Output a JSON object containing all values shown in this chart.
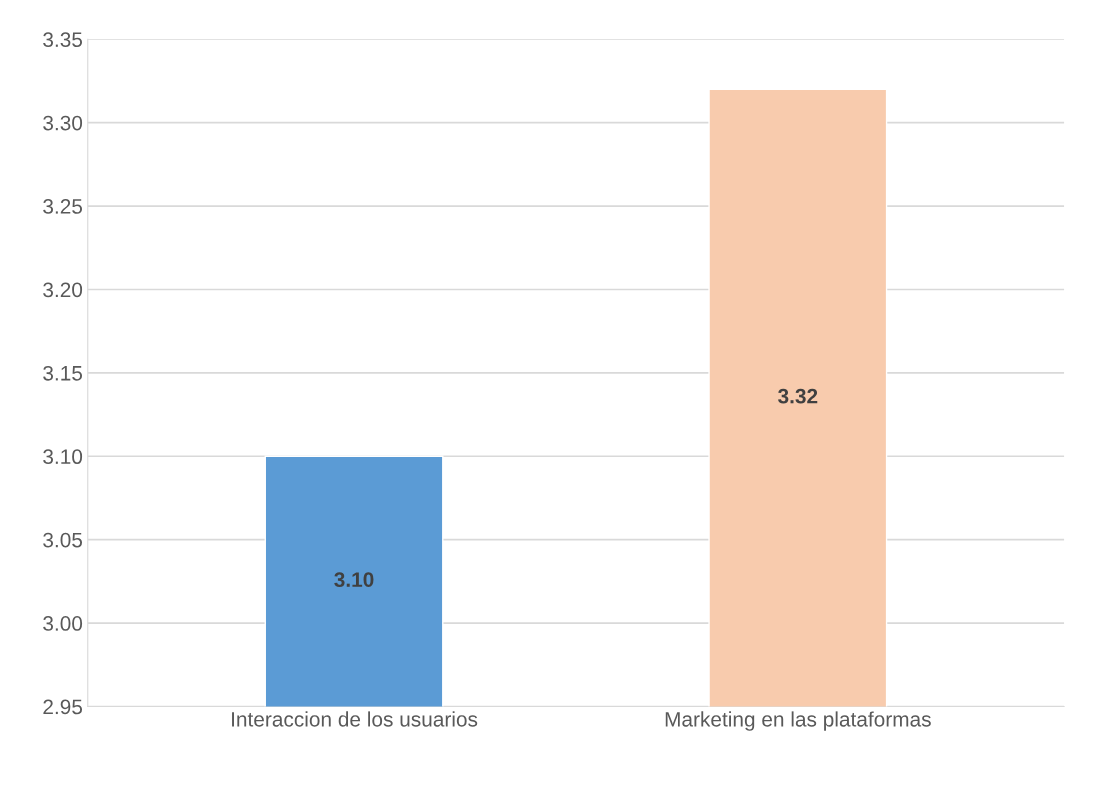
{
  "chart_data": {
    "type": "bar",
    "categories": [
      "Interaccion de los usuarios",
      "Marketing en las plataformas"
    ],
    "values": [
      3.1,
      3.32
    ],
    "colors": [
      "#5b9bd5",
      "#f8cbad"
    ],
    "value_labels": [
      "3.10",
      "3.32"
    ],
    "ylim": [
      2.95,
      3.35
    ],
    "yticks": [
      {
        "value": 2.95,
        "label": "2.95"
      },
      {
        "value": 3.0,
        "label": "3.00"
      },
      {
        "value": 3.05,
        "label": "3.05"
      },
      {
        "value": 3.1,
        "label": "3.10"
      },
      {
        "value": 3.15,
        "label": "3.15"
      },
      {
        "value": 3.2,
        "label": "3.20"
      },
      {
        "value": 3.25,
        "label": "3.25"
      },
      {
        "value": 3.3,
        "label": "3.30"
      },
      {
        "value": 3.35,
        "label": "3.35"
      }
    ],
    "grid": "y"
  }
}
